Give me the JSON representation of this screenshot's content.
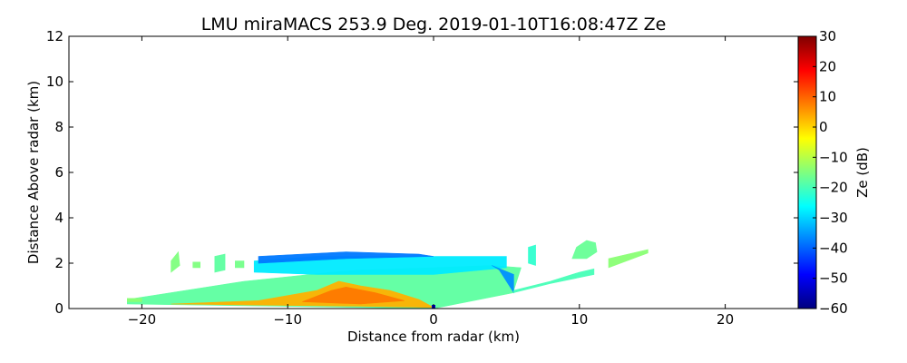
{
  "chart_data": {
    "type": "heatmap",
    "title": "LMU miraMACS 253.9 Deg. 2019-01-10T16:08:47Z  Ze",
    "xlabel": "Distance from radar (km)",
    "ylabel": "Distance Above radar  (km)",
    "xlim": [
      -25,
      25
    ],
    "ylim": [
      0,
      12
    ],
    "xticks": [
      -20,
      -10,
      0,
      10,
      20
    ],
    "xtick_labels": [
      "−20",
      "−10",
      "0",
      "10",
      "20"
    ],
    "yticks": [
      0,
      2,
      4,
      6,
      8,
      10,
      12
    ],
    "ytick_labels": [
      "0",
      "2",
      "4",
      "6",
      "8",
      "10",
      "12"
    ],
    "grid": false,
    "colorbar": {
      "label": "Ze (dB)",
      "range": [
        -60,
        30
      ],
      "ticks": [
        30,
        20,
        10,
        0,
        -10,
        -20,
        -30,
        -40,
        -50,
        -60
      ],
      "tick_labels": [
        "30",
        "20",
        "10",
        "0",
        "−10",
        "−20",
        "−30",
        "−40",
        "−50",
        "−60"
      ],
      "colormap": "jet",
      "stops": [
        "#00007f",
        "#0000ff",
        "#007fff",
        "#00ffff",
        "#7fff7f",
        "#ffff00",
        "#ff7f00",
        "#ff0000",
        "#7f0000"
      ]
    },
    "echo_regions": [
      {
        "name": "main-echo",
        "outline_km": [
          [
            -21,
            0.2
          ],
          [
            -21,
            0.4
          ],
          [
            -19,
            0.6
          ],
          [
            -16,
            0.9
          ],
          [
            -13,
            1.2
          ],
          [
            -10,
            1.4
          ],
          [
            -7,
            1.6
          ],
          [
            -5,
            1.7
          ],
          [
            0,
            1.8
          ],
          [
            4,
            1.9
          ],
          [
            6,
            1.8
          ],
          [
            5.5,
            0.8
          ],
          [
            5.5,
            0.7
          ],
          [
            0,
            0
          ]
        ],
        "ze_db": -18
      },
      {
        "name": "upper-band",
        "outline_km": [
          [
            -12.3,
            1.6
          ],
          [
            -12.3,
            2.1
          ],
          [
            -8,
            2.3
          ],
          [
            -5,
            2.3
          ],
          [
            0,
            2.3
          ],
          [
            5,
            2.3
          ],
          [
            5,
            1.8
          ],
          [
            0,
            1.5
          ],
          [
            -8,
            1.5
          ]
        ],
        "ze_db": -28
      },
      {
        "name": "upper-band-top",
        "outline_km": [
          [
            -12,
            2.0
          ],
          [
            -12,
            2.3
          ],
          [
            -6,
            2.5
          ],
          [
            -1,
            2.4
          ],
          [
            0,
            2.3
          ],
          [
            -6,
            2.2
          ]
        ],
        "ze_db": -38
      },
      {
        "name": "right-edge",
        "outline_km": [
          [
            4,
            1.9
          ],
          [
            5.5,
            1.5
          ],
          [
            5.5,
            0.7
          ],
          [
            4.5,
            1.7
          ]
        ],
        "ze_db": -36
      },
      {
        "name": "warm-core",
        "outline_km": [
          [
            -18,
            0.2
          ],
          [
            -12,
            0.35
          ],
          [
            -8,
            0.8
          ],
          [
            -6.5,
            1.2
          ],
          [
            -5,
            1.0
          ],
          [
            -3,
            0.8
          ],
          [
            -1,
            0.4
          ],
          [
            0,
            0.05
          ],
          [
            -5,
            0.1
          ]
        ],
        "ze_db": 3
      },
      {
        "name": "hot-core",
        "outline_km": [
          [
            -9,
            0.3
          ],
          [
            -7,
            0.8
          ],
          [
            -6,
            0.95
          ],
          [
            -4,
            0.7
          ],
          [
            -2,
            0.35
          ],
          [
            -5,
            0.2
          ]
        ],
        "ze_db": 8
      },
      {
        "name": "right-sheet",
        "outline_km": [
          [
            5.5,
            0.7
          ],
          [
            5.5,
            0.8
          ],
          [
            8,
            1.2
          ],
          [
            10,
            1.6
          ],
          [
            11,
            1.75
          ],
          [
            11,
            1.5
          ],
          [
            8,
            1.1
          ]
        ],
        "ze_db": -20
      },
      {
        "name": "far-right-sheet",
        "outline_km": [
          [
            12,
            1.8
          ],
          [
            12,
            2.2
          ],
          [
            14.7,
            2.6
          ],
          [
            14.7,
            2.45
          ]
        ],
        "ze_db": -14
      },
      {
        "name": "right-tower",
        "outline_km": [
          [
            9.5,
            2.2
          ],
          [
            9.8,
            2.7
          ],
          [
            10.5,
            3.0
          ],
          [
            11.1,
            2.9
          ],
          [
            11.2,
            2.5
          ],
          [
            10.5,
            2.2
          ]
        ],
        "ze_db": -17
      },
      {
        "name": "patch-a",
        "outline_km": [
          [
            -18,
            1.6
          ],
          [
            -18,
            2.1
          ],
          [
            -17.5,
            2.5
          ],
          [
            -17.4,
            1.9
          ]
        ],
        "ze_db": -15
      },
      {
        "name": "patch-b",
        "outline_km": [
          [
            -16.5,
            1.8
          ],
          [
            -16.5,
            2.05
          ],
          [
            -16,
            2.05
          ],
          [
            -16,
            1.8
          ]
        ],
        "ze_db": -15
      },
      {
        "name": "patch-c",
        "outline_km": [
          [
            -15,
            1.6
          ],
          [
            -15,
            2.3
          ],
          [
            -14.3,
            2.4
          ],
          [
            -14.3,
            1.7
          ]
        ],
        "ze_db": -18
      },
      {
        "name": "patch-d",
        "outline_km": [
          [
            -13.6,
            1.8
          ],
          [
            -13.6,
            2.1
          ],
          [
            -13,
            2.1
          ],
          [
            -13,
            1.8
          ]
        ],
        "ze_db": -16
      },
      {
        "name": "patch-e",
        "outline_km": [
          [
            6.5,
            2.0
          ],
          [
            6.5,
            2.7
          ],
          [
            7,
            2.8
          ],
          [
            7,
            1.9
          ]
        ],
        "ze_db": -22
      },
      {
        "name": "patch-f",
        "outline_km": [
          [
            -20,
            0.3
          ],
          [
            -21,
            0.3
          ],
          [
            -21,
            0.45
          ],
          [
            -20,
            0.45
          ]
        ],
        "ze_db": -14
      }
    ]
  }
}
